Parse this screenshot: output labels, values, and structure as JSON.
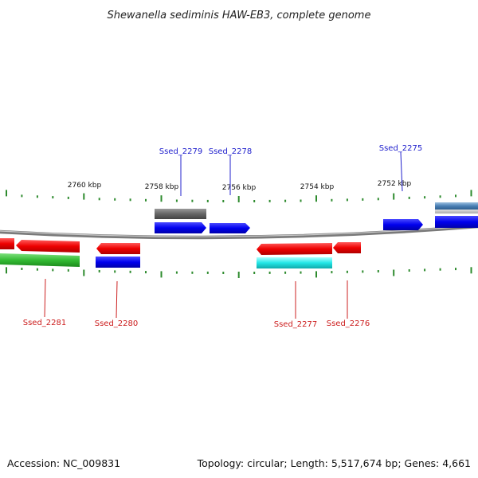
{
  "title": "Shewanella sediminis HAW-EB3, complete genome",
  "footer": {
    "accession": "Accession: NC_009831",
    "summary": "Topology: circular; Length: 5,517,674 bp; Genes: 4,661"
  },
  "scale_labels": {
    "kbp_2760": "2760 kbp",
    "kbp_2758": "2758 kbp",
    "kbp_2756": "2756 kbp",
    "kbp_2754": "2754 kbp",
    "kbp_2752": "2752 kbp"
  },
  "genes": {
    "ssed_2275": "Ssed_2275",
    "ssed_2276": "Ssed_2276",
    "ssed_2277": "Ssed_2277",
    "ssed_2278": "Ssed_2278",
    "ssed_2279": "Ssed_2279",
    "ssed_2280": "Ssed_2280",
    "ssed_2281": "Ssed_2281"
  },
  "colors": {
    "forward_label": "#1c1ccc",
    "reverse_label": "#cc1c1c",
    "tick": "#2e8b2e",
    "backbone": "#888888"
  }
}
